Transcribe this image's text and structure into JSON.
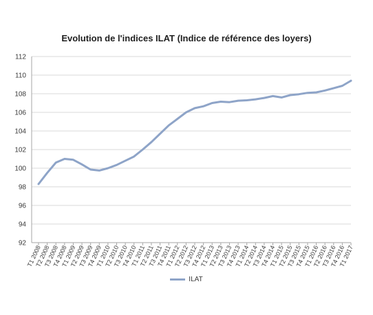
{
  "chart_data": {
    "type": "line",
    "title": "Evolution de l'indices ILAT (Indice de référence des loyers)",
    "xlabel": "",
    "ylabel": "",
    "ylim": [
      92,
      112
    ],
    "yticks": [
      92,
      94,
      96,
      98,
      100,
      102,
      104,
      106,
      108,
      110,
      112
    ],
    "grid": true,
    "legend_position": "bottom",
    "categories": [
      "T1 2008",
      "T2 2008",
      "T3 2008",
      "T4 2008",
      "T1 2009",
      "T2 2009",
      "T3 2009",
      "T4 2009",
      "T1 2010",
      "T2 2010",
      "T3 2010",
      "T4 2010",
      "T1 2011",
      "T2 2011",
      "T3 2011",
      "T4 2011",
      "T1 2012",
      "T2 2012",
      "T3 2012",
      "T4 2012",
      "T1 2013",
      "T2 2013",
      "T3 2013",
      "T4 2013",
      "T1 2014",
      "T2 2014",
      "T3 2014",
      "T4 2014",
      "T1 2015",
      "T2 2015",
      "T3 2015",
      "T4 2015",
      "T1 2016",
      "T2 2016",
      "T3 2016",
      "T4 2016",
      "T1 2017"
    ],
    "series": [
      {
        "name": "ILAT",
        "color": "#8ea4c8",
        "values": [
          98.3,
          99.5,
          100.6,
          101.0,
          100.9,
          100.4,
          99.85,
          99.75,
          100.0,
          100.35,
          100.8,
          101.25,
          102.0,
          102.8,
          103.7,
          104.6,
          105.3,
          106.0,
          106.45,
          106.65,
          107.0,
          107.15,
          107.1,
          107.25,
          107.3,
          107.4,
          107.55,
          107.75,
          107.6,
          107.85,
          107.95,
          108.1,
          108.15,
          108.35,
          108.6,
          108.85,
          109.4
        ]
      }
    ]
  }
}
